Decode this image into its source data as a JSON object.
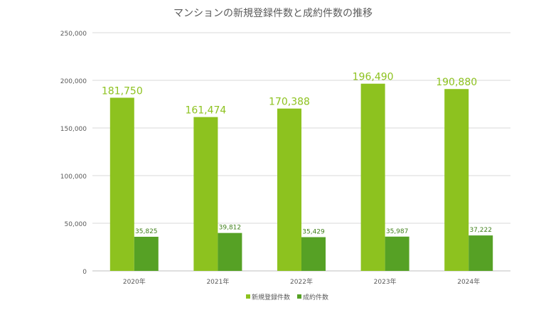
{
  "chart_data": {
    "type": "bar",
    "title": "マンションの新規登録件数と成約件数の推移",
    "categories": [
      "2020年",
      "2021年",
      "2022年",
      "2023年",
      "2024年"
    ],
    "series": [
      {
        "name": "新規登録件数",
        "values": [
          181750,
          161474,
          170388,
          196490,
          190880
        ],
        "labels": [
          "181,750",
          "161,474",
          "170,388",
          "196,490",
          "190,880"
        ],
        "color": "#8dc21f"
      },
      {
        "name": "成約件数",
        "values": [
          35825,
          39812,
          35429,
          35987,
          37222
        ],
        "labels": [
          "35,825",
          "39,812",
          "35,429",
          "35,987",
          "37,222"
        ],
        "color": "#56a125"
      }
    ],
    "ylim": [
      0,
      250000
    ],
    "yticks": [
      "0",
      "50,000",
      "100,000",
      "150,000",
      "200,000",
      "250,000"
    ],
    "grid": true,
    "legend": "bottom-center"
  }
}
